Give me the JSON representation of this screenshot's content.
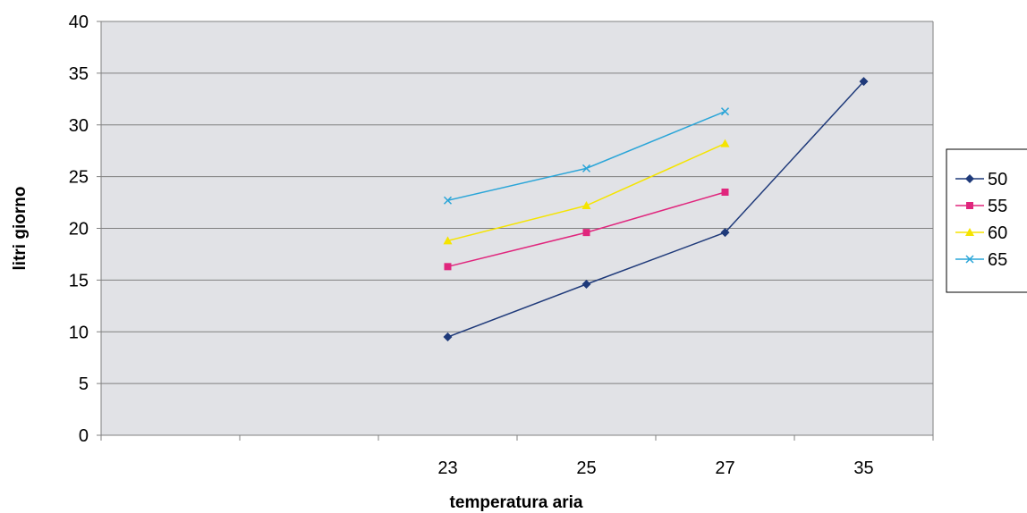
{
  "chart_data": {
    "type": "line",
    "title": "",
    "xlabel": "temperatura aria",
    "ylabel": "litri giorno",
    "categories": [
      "",
      "",
      "23",
      "25",
      "27",
      "35"
    ],
    "ylim": [
      0,
      40
    ],
    "yticks": [
      0,
      5,
      10,
      15,
      20,
      25,
      30,
      35,
      40
    ],
    "grid": true,
    "legend_position": "right",
    "series": [
      {
        "name": "50",
        "values": [
          null,
          null,
          9.5,
          14.6,
          19.6,
          34.2
        ],
        "color": "#1f3a7a",
        "marker": "diamond"
      },
      {
        "name": "55",
        "values": [
          null,
          null,
          16.3,
          19.6,
          23.5,
          null
        ],
        "color": "#e0267d",
        "marker": "square"
      },
      {
        "name": "60",
        "values": [
          null,
          null,
          18.8,
          22.2,
          28.2,
          null
        ],
        "color": "#f5e400",
        "marker": "triangle"
      },
      {
        "name": "65",
        "values": [
          null,
          null,
          22.7,
          25.8,
          31.3,
          null
        ],
        "color": "#2aa5d8",
        "marker": "x"
      }
    ]
  },
  "colors": {
    "plot_background": "#e1e2e6",
    "gridline": "#7f7f7f",
    "axis": "#808080"
  }
}
